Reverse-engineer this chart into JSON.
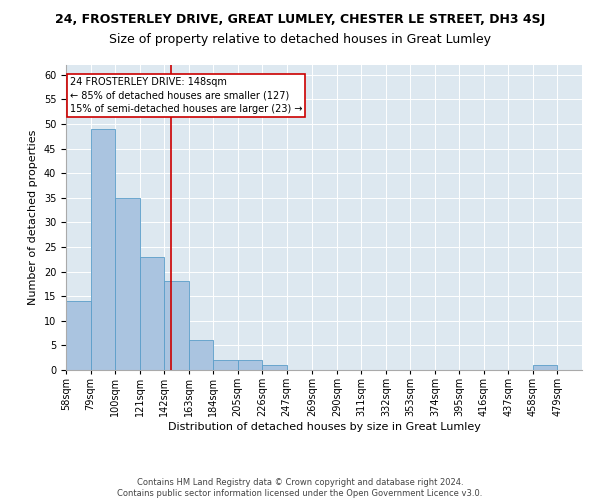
{
  "title": "24, FROSTERLEY DRIVE, GREAT LUMLEY, CHESTER LE STREET, DH3 4SJ",
  "subtitle": "Size of property relative to detached houses in Great Lumley",
  "xlabel": "Distribution of detached houses by size in Great Lumley",
  "ylabel": "Number of detached properties",
  "bin_labels": [
    "58sqm",
    "79sqm",
    "100sqm",
    "121sqm",
    "142sqm",
    "163sqm",
    "184sqm",
    "205sqm",
    "226sqm",
    "247sqm",
    "269sqm",
    "290sqm",
    "311sqm",
    "332sqm",
    "353sqm",
    "374sqm",
    "395sqm",
    "416sqm",
    "437sqm",
    "458sqm",
    "479sqm"
  ],
  "bin_edges": [
    58,
    79,
    100,
    121,
    142,
    163,
    184,
    205,
    226,
    247,
    269,
    290,
    311,
    332,
    353,
    374,
    395,
    416,
    437,
    458,
    479,
    500
  ],
  "counts": [
    14,
    49,
    35,
    23,
    18,
    6,
    2,
    2,
    1,
    0,
    0,
    0,
    0,
    0,
    0,
    0,
    0,
    0,
    0,
    1,
    0
  ],
  "bar_color": "#aac4e0",
  "bar_edge_color": "#5a9ec9",
  "vline_x": 148,
  "vline_color": "#cc0000",
  "annotation_text": "24 FROSTERLEY DRIVE: 148sqm\n← 85% of detached houses are smaller (127)\n15% of semi-detached houses are larger (23) →",
  "annotation_box_color": "#cc0000",
  "ylim": [
    0,
    62
  ],
  "yticks": [
    0,
    5,
    10,
    15,
    20,
    25,
    30,
    35,
    40,
    45,
    50,
    55,
    60
  ],
  "background_color": "#dde8f0",
  "footer_text": "Contains HM Land Registry data © Crown copyright and database right 2024.\nContains public sector information licensed under the Open Government Licence v3.0.",
  "title_fontsize": 9,
  "subtitle_fontsize": 9,
  "xlabel_fontsize": 8,
  "ylabel_fontsize": 8,
  "footer_fontsize": 6,
  "tick_fontsize": 7,
  "annot_fontsize": 7
}
